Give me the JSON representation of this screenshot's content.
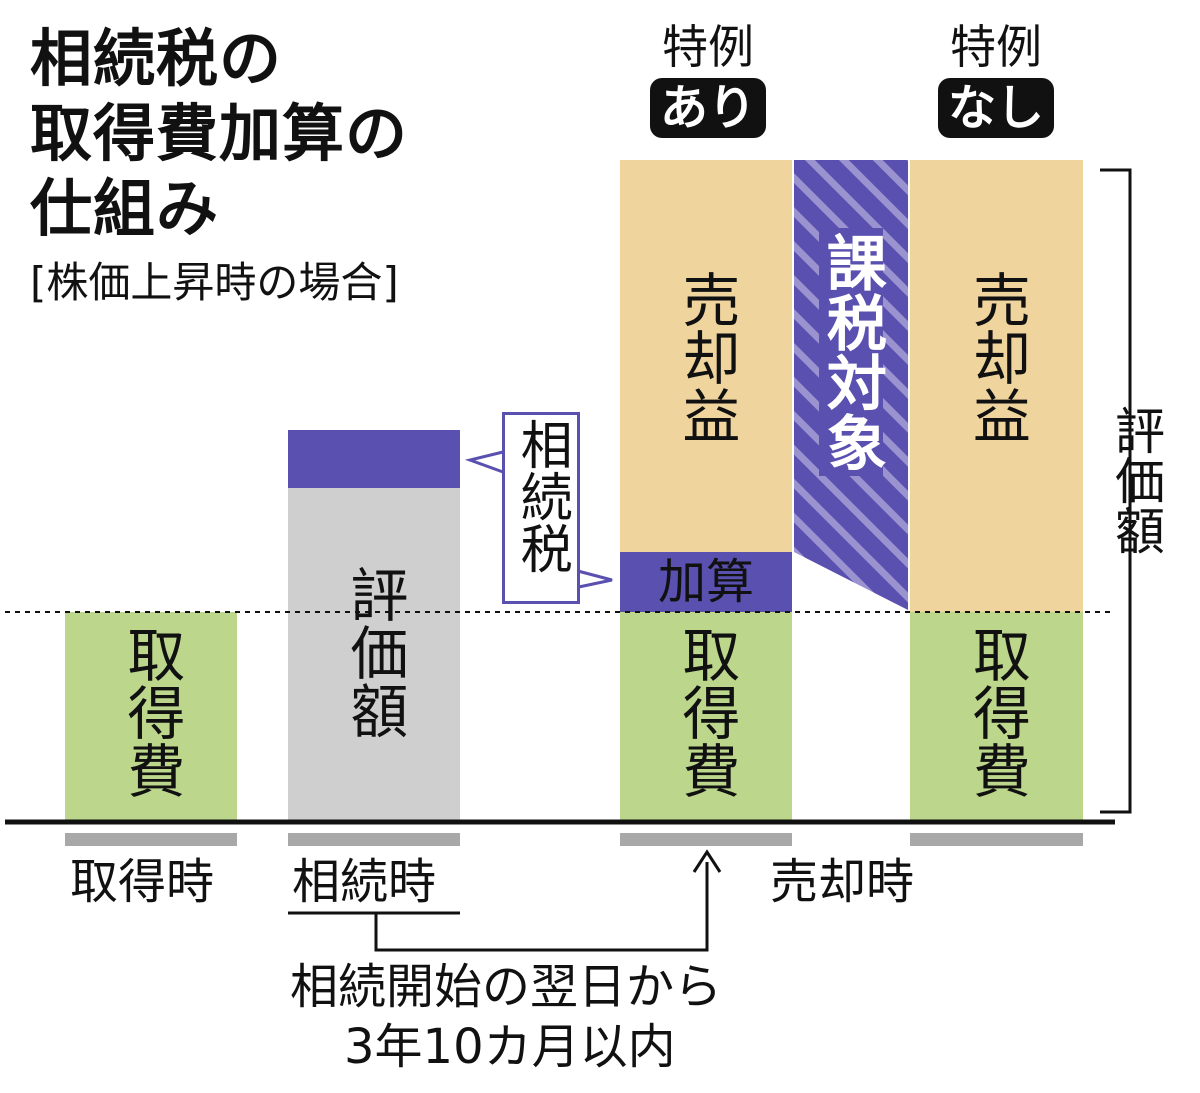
{
  "title": {
    "line1": "相続税の",
    "line2": "取得費加算の",
    "line3": "仕組み"
  },
  "subtitle": "[株価上昇時の場合]",
  "badges": {
    "ari": {
      "top": "特例",
      "label": "あり"
    },
    "nashi": {
      "top": "特例",
      "label": "なし"
    }
  },
  "labels": {
    "acquisition_cost": "取得費",
    "appraised_value": "評価額",
    "inheritance_tax": "相続税",
    "addition": "加算",
    "sale_gain": "売却益",
    "taxable": "課税対象",
    "bracket_label": "評価額"
  },
  "timeline": {
    "acquisition": "取得時",
    "inheritance": "相続時",
    "sale": "売却時"
  },
  "note": {
    "line1": "相続開始の翌日から",
    "line2": "3年10カ月以内"
  },
  "colors": {
    "green": "#bcd68c",
    "gray": "#cfcfcf",
    "purple": "#5a50b0",
    "tan": "#f0d49e",
    "black": "#111111",
    "bar_gray": "#a8a8a8"
  }
}
